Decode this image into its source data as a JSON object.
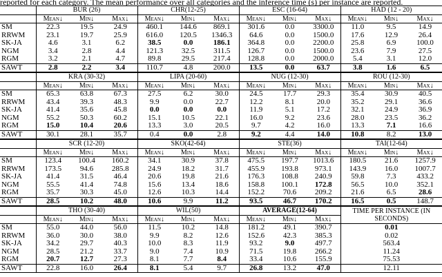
{
  "caption": "reported for each category. The mean performance over all categories and the inference time (s) per instance are reported.",
  "blocks": [
    {
      "groups": [
        "BUR (26)",
        "CHR(12-25)",
        "ESC (16-64)",
        "HAD (12 - 20)"
      ],
      "subheaders": [
        "Mean↓",
        "Min↓",
        "Max↓",
        "Mean↓",
        "Min↓",
        "Max↓",
        "Mean↓",
        "Min↓",
        "Max↓",
        "Mean↓",
        "Min↓",
        "Max↓"
      ],
      "rows": [
        {
          "label": "SM",
          "cells": [
            "22.3",
            "19.5",
            "24.9",
            "460.1",
            "144.6",
            "869.1",
            "301.6",
            "0.0",
            "3300.0",
            "11.0",
            "9.5",
            "14.9"
          ]
        },
        {
          "label": "RRWM",
          "cells": [
            "23.1",
            "19.7",
            "25.9",
            "616.0",
            "120.5",
            "1346.3",
            "64.6",
            "0.0",
            "1500.0",
            "17.6",
            "12.9",
            "26.4"
          ]
        },
        {
          "label": "SK-JA",
          "cells": [
            "4.6",
            "3.1",
            "6.2",
            "38.5",
            "0.0",
            "186.1",
            "364.8",
            "0.0",
            "2200.0",
            "25.8",
            "6.9",
            "100.0"
          ]
        },
        {
          "label": "NGM",
          "cells": [
            "3.4",
            "2.8",
            "4.4",
            "121.3",
            "32.5",
            "311.5",
            "126.7",
            "0.0",
            "1500.0",
            "23.6",
            "7.9",
            "27.5"
          ]
        },
        {
          "label": "RGM",
          "cells": [
            "3.2",
            "2.1",
            "4.7",
            "89.8",
            "29.5",
            "217.4",
            "128.8",
            "0.0",
            "2000.0",
            "5.4",
            "3.1",
            "12.0"
          ]
        },
        {
          "label": "SAWT",
          "cells": [
            "2.8",
            "2.2",
            "3.4",
            "110.7",
            "4.8",
            "200.0",
            "13.5",
            "0.0",
            "63.7",
            "3.8",
            "1.6",
            "6.5"
          ]
        }
      ],
      "bold": [
        [
          5,
          0
        ],
        [
          5,
          1
        ],
        [
          5,
          2
        ],
        [
          2,
          3
        ],
        [
          2,
          4
        ],
        [
          2,
          5
        ],
        [
          5,
          6
        ],
        [
          5,
          7
        ],
        [
          5,
          8
        ],
        [
          5,
          9
        ],
        [
          5,
          10
        ],
        [
          5,
          11
        ]
      ]
    },
    {
      "groups": [
        "KRA (30-32)",
        "LIPA (20-60)",
        "NUG (12-30)",
        "ROU (12-30)"
      ],
      "subheaders": [
        "Mean↓",
        "Min↓",
        "Max↓",
        "Mean↓",
        "Min↓",
        "Max↓",
        "Mean↓",
        "Min↓",
        "Max↓",
        "Mean↓",
        "Min↓",
        "Max↓"
      ],
      "rows": [
        {
          "label": "SM",
          "cells": [
            "65.3",
            "63.8",
            "67.3",
            "27.5",
            "6.2",
            "30.0",
            "24.5",
            "17.7",
            "29.3",
            "35.4",
            "30.9",
            "40.5"
          ]
        },
        {
          "label": "RRWM",
          "cells": [
            "43.4",
            "39.3",
            "48.3",
            "9.9",
            "0.0",
            "22.7",
            "12.2",
            "8.1",
            "20.0",
            "35.2",
            "29.1",
            "36.6"
          ]
        },
        {
          "label": "SK-JA",
          "cells": [
            "41.4",
            "35.6",
            "45.8",
            "0.0",
            "0.0",
            "0.0",
            "11.9",
            "5.1",
            "17.2",
            "32.1",
            "24.9",
            "36.9"
          ]
        },
        {
          "label": "NGM",
          "cells": [
            "55.2",
            "50.3",
            "60.2",
            "15.1",
            "10.5",
            "22.1",
            "16.0",
            "9.2",
            "23.6",
            "28.0",
            "23.5",
            "36.2"
          ]
        },
        {
          "label": "RGM",
          "cells": [
            "15.0",
            "10.4",
            "20.6",
            "13.3",
            "3.0",
            "20.5",
            "9.7",
            "4.2",
            "16.0",
            "13.3",
            "7.1",
            "16.6"
          ]
        },
        {
          "label": "SAWT",
          "cells": [
            "30.1",
            "28.1",
            "35.7",
            "0.4",
            "0.0",
            "2.8",
            "9.2",
            "4.4",
            "14.0",
            "10.8",
            "8.2",
            "13.0"
          ]
        }
      ],
      "bold": [
        [
          4,
          0
        ],
        [
          4,
          1
        ],
        [
          4,
          2
        ],
        [
          2,
          3
        ],
        [
          2,
          4
        ],
        [
          2,
          5
        ],
        [
          5,
          4
        ],
        [
          5,
          6
        ],
        [
          5,
          8
        ],
        [
          5,
          9
        ],
        [
          4,
          10
        ],
        [
          5,
          11
        ]
      ]
    },
    {
      "groups": [
        "SCR (12-20)",
        "SKO(42-64)",
        "STE(36)",
        "TAI(12-64)"
      ],
      "subheaders": [
        "Mean↓",
        "Min↓",
        "Max↓",
        "Mean↓",
        "Min↓",
        "Max↓",
        "Mean↓",
        "Min↓",
        "Max↓",
        "Mean↓",
        "Min↓",
        "Max↓"
      ],
      "rows": [
        {
          "label": "SM",
          "cells": [
            "123.4",
            "100.4",
            "160.2",
            "34.1",
            "30.9",
            "37.8",
            "475.5",
            "197.7",
            "1013.6",
            "180.5",
            "21.6",
            "1257.9"
          ]
        },
        {
          "label": "RRWM",
          "cells": [
            "173.5",
            "94.6",
            "285.8",
            "24.9",
            "18.2",
            "31.7",
            "455.9",
            "193.8",
            "973.1",
            "143.9",
            "16.0",
            "1007.7"
          ]
        },
        {
          "label": "SK-JA",
          "cells": [
            "41.4",
            "31.5",
            "46.4",
            "20.6",
            "19.8",
            "21.6",
            "176.3",
            "108.8",
            "240.9",
            "59.8",
            "7.3",
            "433.2"
          ]
        },
        {
          "label": "NGM",
          "cells": [
            "55.5",
            "41.4",
            "74.8",
            "15.6",
            "13.4",
            "18.6",
            "158.8",
            "100.1",
            "172.8",
            "56.5",
            "10.0",
            "352.1"
          ]
        },
        {
          "label": "RGM",
          "cells": [
            "35.7",
            "30.3",
            "45.0",
            "12.6",
            "10.3",
            "14.4",
            "152.2",
            "70.6",
            "209.2",
            "21.6",
            "6.5",
            "28.6"
          ]
        },
        {
          "label": "SAWT",
          "cells": [
            "28.5",
            "10.2",
            "48.0",
            "10.6",
            "9.9",
            "11.2",
            "93.5",
            "46.7",
            "170.2",
            "16.5",
            "0.5",
            "148.7"
          ]
        }
      ],
      "bold": [
        [
          5,
          0
        ],
        [
          5,
          1
        ],
        [
          5,
          2
        ],
        [
          5,
          3
        ],
        [
          5,
          5
        ],
        [
          5,
          6
        ],
        [
          5,
          7
        ],
        [
          3,
          8
        ],
        [
          5,
          8
        ],
        [
          5,
          9
        ],
        [
          5,
          10
        ],
        [
          4,
          11
        ]
      ]
    },
    {
      "groups": [
        "THO (30-40)",
        "WIL(50)",
        "AVERAGE(12-64)",
        "TIME PER INSTANCE (IN SECONDS)"
      ],
      "subheaders": [
        "Mean↓",
        "Min↓",
        "Max↓",
        "Mean↓",
        "Min↓",
        "Max↓",
        "Mean↓",
        "Min↓",
        "Max↓"
      ],
      "rows": [
        {
          "label": "SM",
          "cells": [
            "55.0",
            "44.0",
            "56.0",
            "11.5",
            "10.2",
            "14.8",
            "181.2",
            "49.1",
            "390.7",
            "0.01"
          ]
        },
        {
          "label": "RRWM",
          "cells": [
            "36.0",
            "30.0",
            "38.0",
            "9.9",
            "8.2",
            "12.6",
            "152.6",
            "42.3",
            "385.3",
            "0.02"
          ]
        },
        {
          "label": "SK-JA",
          "cells": [
            "34.2",
            "29.7",
            "40.3",
            "10.0",
            "8.3",
            "11.9",
            "93.2",
            "9.0",
            "497.7",
            "563.4"
          ]
        },
        {
          "label": "NGM",
          "cells": [
            "28.5",
            "21.2",
            "33.7",
            "9.0",
            "7.4",
            "10.9",
            "71.5",
            "19.8",
            "266.2",
            "11.24"
          ]
        },
        {
          "label": "RGM",
          "cells": [
            "20.7",
            "12.7",
            "27.3",
            "8.1",
            "7.7",
            "8.4",
            "33.4",
            "10.6",
            "155.9",
            "75.53"
          ]
        },
        {
          "label": "SAWT",
          "cells": [
            "22.8",
            "16.0",
            "26.4",
            "8.1",
            "5.4",
            "9.7",
            "26.8",
            "13.2",
            "47.0",
            "12.11"
          ]
        }
      ],
      "bold": [
        [
          4,
          0
        ],
        [
          4,
          1
        ],
        [
          5,
          2
        ],
        [
          5,
          3
        ],
        [
          4,
          5
        ],
        [
          5,
          6
        ],
        [
          2,
          7
        ],
        [
          5,
          8
        ],
        [
          0,
          9
        ]
      ]
    }
  ]
}
